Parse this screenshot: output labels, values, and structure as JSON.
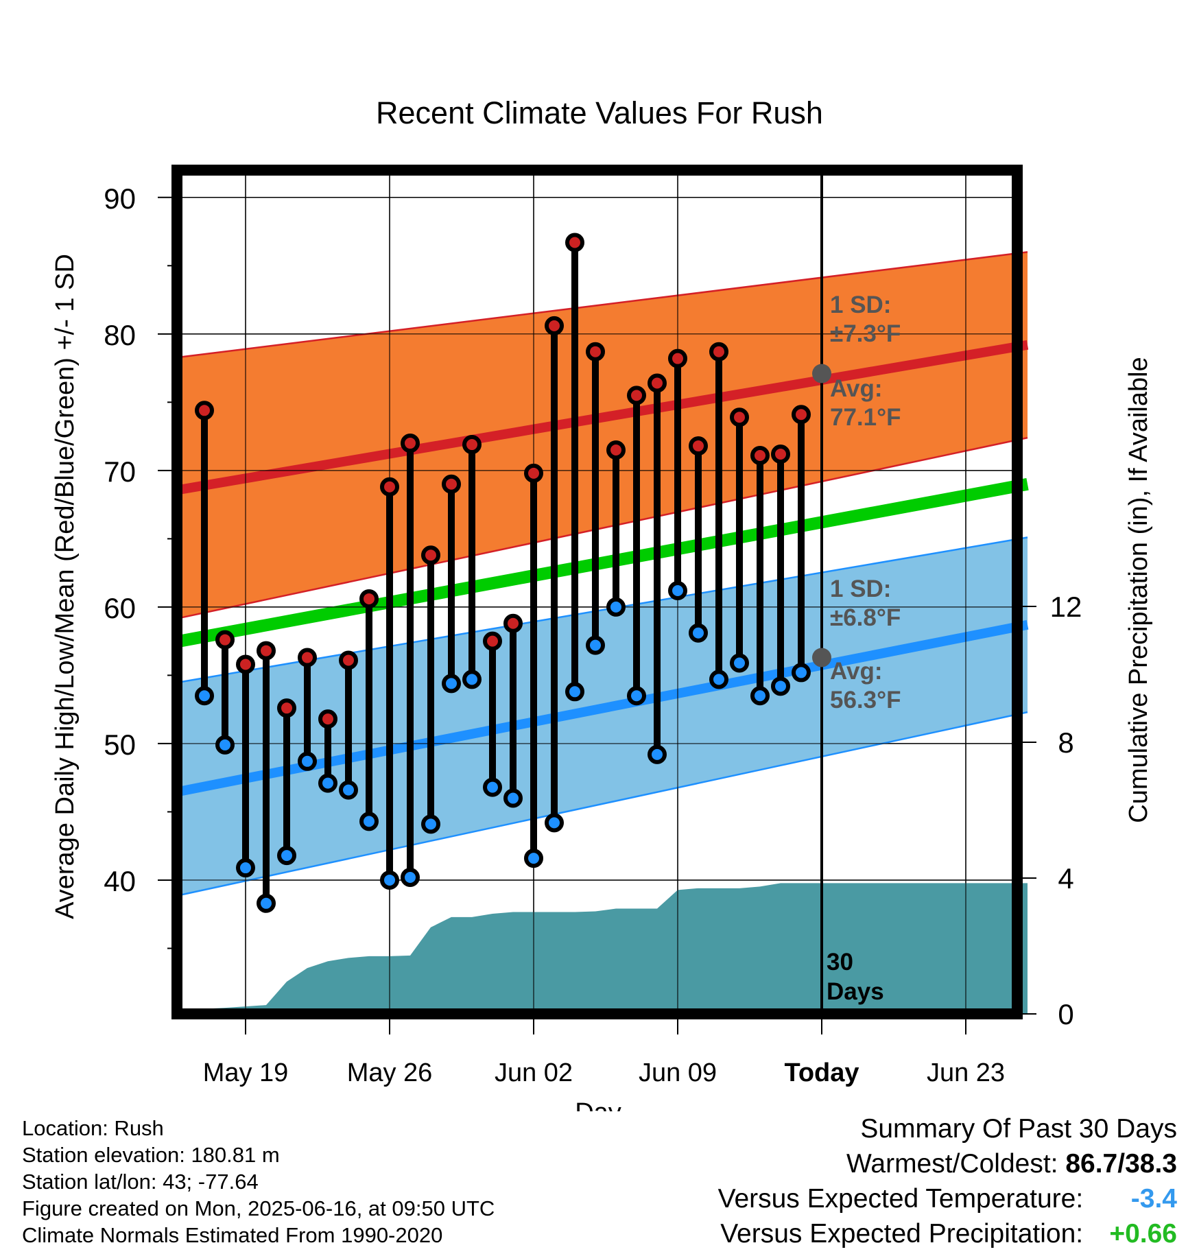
{
  "chart_data": {
    "type": "line",
    "title": "Recent Climate Values For Rush",
    "xlabel": "Day",
    "ylabel": "Average Daily High/Low/Mean (Red/Blue/Green) +/- 1 SD",
    "y2label": "Cumulative Precipitation (in), If Available",
    "x_ticks": [
      "May 19",
      "May 26",
      "Jun 02",
      "Jun 09",
      "Today",
      "Jun 23"
    ],
    "y_ticks": [
      "40",
      "50",
      "60",
      "70",
      "80",
      "90"
    ],
    "y2_ticks": [
      "0",
      "4",
      "8",
      "12"
    ],
    "ylim": [
      30.2,
      92
    ],
    "y2lim": [
      0,
      18.6
    ],
    "xlim_days": [
      "2025-05-15.8",
      "2025-06-26"
    ],
    "grid": true,
    "days": [
      "2025-05-17",
      "2025-05-18",
      "2025-05-19",
      "2025-05-20",
      "2025-05-21",
      "2025-05-22",
      "2025-05-23",
      "2025-05-24",
      "2025-05-25",
      "2025-05-26",
      "2025-05-27",
      "2025-05-28",
      "2025-05-29",
      "2025-05-30",
      "2025-05-31",
      "2025-06-01",
      "2025-06-02",
      "2025-06-03",
      "2025-06-04",
      "2025-06-05",
      "2025-06-06",
      "2025-06-07",
      "2025-06-08",
      "2025-06-09",
      "2025-06-10",
      "2025-06-11",
      "2025-06-12",
      "2025-06-13",
      "2025-06-14",
      "2025-06-15"
    ],
    "series": [
      {
        "name": "High",
        "values": [
          74.4,
          57.6,
          55.8,
          56.8,
          52.6,
          56.3,
          51.8,
          56.1,
          60.6,
          68.8,
          72.0,
          63.8,
          69.0,
          71.9,
          57.5,
          58.8,
          69.8,
          80.6,
          86.7,
          78.7,
          71.5,
          75.5,
          76.4,
          78.2,
          71.8,
          78.7,
          73.9,
          71.1,
          71.2,
          74.1
        ]
      },
      {
        "name": "Low",
        "values": [
          53.5,
          49.9,
          40.9,
          38.3,
          41.8,
          48.7,
          47.1,
          46.6,
          44.3,
          40.0,
          40.2,
          44.1,
          54.4,
          54.7,
          46.8,
          46.0,
          41.6,
          44.2,
          53.8,
          57.2,
          60.0,
          53.5,
          49.2,
          61.2,
          58.1,
          54.7,
          55.9,
          53.5,
          54.2,
          55.2
        ]
      }
    ],
    "normals": {
      "dates": [
        "2025-05-15.8",
        "2025-06-26"
      ],
      "high_avg": [
        68.6,
        79.2
      ],
      "high_upper": [
        78.3,
        86.0
      ],
      "high_lower": [
        59.2,
        72.4
      ],
      "low_avg": [
        46.5,
        58.7
      ],
      "low_upper": [
        54.5,
        65.1
      ],
      "low_lower": [
        38.9,
        52.3
      ],
      "mean_avg": [
        57.5,
        69.0
      ]
    },
    "precip": {
      "dates": [
        "2025-05-16",
        "2025-05-17",
        "2025-05-18",
        "2025-05-19",
        "2025-05-20",
        "2025-05-21",
        "2025-05-22",
        "2025-05-23",
        "2025-05-24",
        "2025-05-25",
        "2025-05-26",
        "2025-05-27",
        "2025-05-28",
        "2025-05-29",
        "2025-05-30",
        "2025-05-31",
        "2025-06-01",
        "2025-06-02",
        "2025-06-03",
        "2025-06-04",
        "2025-06-05",
        "2025-06-06",
        "2025-06-07",
        "2025-06-08",
        "2025-06-09",
        "2025-06-10",
        "2025-06-11",
        "2025-06-12",
        "2025-06-13",
        "2025-06-14",
        "2025-06-15",
        "2025-06-26"
      ],
      "values": [
        0.0,
        0.15,
        0.18,
        0.22,
        0.26,
        0.95,
        1.35,
        1.55,
        1.65,
        1.7,
        1.7,
        1.72,
        2.55,
        2.85,
        2.85,
        2.95,
        3.0,
        3.0,
        3.0,
        3.0,
        3.02,
        3.1,
        3.1,
        3.1,
        3.65,
        3.7,
        3.7,
        3.7,
        3.75,
        3.85,
        3.85,
        3.85
      ]
    },
    "annotations": {
      "high_sd": "1 SD:",
      "high_sd_value": "±7.3°F",
      "high_avg_label": "Avg:",
      "high_avg_value": "77.1°F",
      "high_avg_today": 77.1,
      "low_sd": "1 SD:",
      "low_sd_value": "±6.8°F",
      "low_avg_label": "Avg:",
      "low_avg_value": "56.3°F",
      "low_avg_today": 56.3,
      "days_window_num": "30",
      "days_window_word": "Days"
    },
    "colors": {
      "high_band": "#f47c30",
      "high_line": "#d42027",
      "low_band": "#82c2e6",
      "low_line": "#1e90ff",
      "mean_line": "#00cc00",
      "precip": "#4a9aa3",
      "high_marker": "#cc2222",
      "low_marker": "#1e90ff",
      "annotation_text": "#555555"
    }
  },
  "footer": {
    "location": "Location: Rush",
    "elevation": "Station elevation: 180.81 m",
    "latlon": "Station lat/lon: 43; -77.64",
    "created": "Figure created on Mon, 2025-06-16, at 09:50 UTC",
    "normals": "Climate Normals Estimated From 1990-2020"
  },
  "summary": {
    "heading": "Summary Of Past 30 Days",
    "warmest_coldest_label": "Warmest/Coldest:",
    "warmest_coldest_value": "86.7/38.3",
    "temp_label": "Versus Expected Temperature:",
    "temp_value": "-3.4",
    "temp_color": "#3399ee",
    "precip_label": "Versus Expected Precipitation:",
    "precip_value": "+0.66",
    "precip_color": "#22bb22"
  }
}
